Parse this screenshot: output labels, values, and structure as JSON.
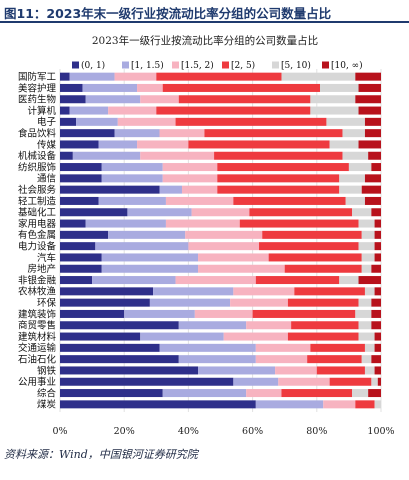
{
  "figure": {
    "title": "图11：2023年末一级行业按流动比率分组的公司数量占比",
    "source": "资料来源：Wind，中国银河证券研究院"
  },
  "chart_data": {
    "type": "bar",
    "orientation": "horizontal",
    "stacked": "percent",
    "title": "2023年一级行业按流动比率分组的公司数量占比",
    "xlabel": "",
    "ylabel": "",
    "xlim": [
      0,
      1
    ],
    "x_ticks": [
      "0%",
      "20%",
      "40%",
      "60%",
      "80%",
      "100%"
    ],
    "legend_position": "top",
    "categories": [
      "国防军工",
      "美容护理",
      "医药生物",
      "计算机",
      "电子",
      "食品饮料",
      "传媒",
      "机械设备",
      "纺织服饰",
      "通信",
      "社会服务",
      "轻工制造",
      "基础化工",
      "家用电器",
      "有色金属",
      "电力设备",
      "汽车",
      "房地产",
      "非银金融",
      "农林牧渔",
      "环保",
      "建筑装饰",
      "商贸零售",
      "建筑材料",
      "交通运输",
      "石油石化",
      "钢铁",
      "公用事业",
      "综合",
      "煤炭"
    ],
    "series": [
      {
        "name": "(0, 1)",
        "color": "#2e2f8a",
        "values": [
          0.03,
          0.07,
          0.08,
          0.03,
          0.05,
          0.17,
          0.12,
          0.04,
          0.13,
          0.13,
          0.31,
          0.12,
          0.21,
          0.08,
          0.15,
          0.11,
          0.13,
          0.13,
          0.1,
          0.29,
          0.28,
          0.2,
          0.37,
          0.25,
          0.31,
          0.37,
          0.43,
          0.54,
          0.32,
          0.61
        ]
      },
      {
        "name": "[1, 1.5)",
        "color": "#a9abe0",
        "values": [
          0.14,
          0.17,
          0.17,
          0.12,
          0.13,
          0.14,
          0.12,
          0.21,
          0.19,
          0.19,
          0.07,
          0.21,
          0.2,
          0.25,
          0.24,
          0.29,
          0.3,
          0.3,
          0.26,
          0.25,
          0.25,
          0.22,
          0.21,
          0.26,
          0.3,
          0.24,
          0.24,
          0.14,
          0.26,
          0.21
        ]
      },
      {
        "name": "[1.5, 2)",
        "color": "#f7b3c0",
        "values": [
          0.13,
          0.08,
          0.12,
          0.15,
          0.18,
          0.14,
          0.16,
          0.23,
          0.17,
          0.17,
          0.11,
          0.21,
          0.18,
          0.23,
          0.24,
          0.22,
          0.22,
          0.27,
          0.25,
          0.19,
          0.18,
          0.18,
          0.14,
          0.2,
          0.17,
          0.16,
          0.13,
          0.16,
          0.11,
          0.1
        ]
      },
      {
        "name": "[2, 5)",
        "color": "#ee3a3f",
        "values": [
          0.39,
          0.49,
          0.41,
          0.48,
          0.47,
          0.43,
          0.44,
          0.4,
          0.41,
          0.38,
          0.38,
          0.35,
          0.32,
          0.37,
          0.31,
          0.31,
          0.29,
          0.24,
          0.26,
          0.22,
          0.22,
          0.32,
          0.21,
          0.22,
          0.17,
          0.17,
          0.15,
          0.13,
          0.22,
          0.06
        ]
      },
      {
        "name": "[5, 10)",
        "color": "#d7d7d7",
        "values": [
          0.23,
          0.12,
          0.14,
          0.15,
          0.12,
          0.07,
          0.09,
          0.08,
          0.07,
          0.08,
          0.07,
          0.06,
          0.06,
          0.05,
          0.04,
          0.05,
          0.04,
          0.03,
          0.06,
          0.03,
          0.04,
          0.05,
          0.04,
          0.05,
          0.03,
          0.03,
          0.03,
          0.02,
          0.05,
          0.02
        ]
      },
      {
        "name": "[10, ∞)",
        "color": "#b8121c",
        "values": [
          0.08,
          0.07,
          0.08,
          0.07,
          0.05,
          0.05,
          0.07,
          0.04,
          0.03,
          0.05,
          0.06,
          0.05,
          0.03,
          0.02,
          0.02,
          0.02,
          0.02,
          0.03,
          0.07,
          0.02,
          0.03,
          0.03,
          0.03,
          0.02,
          0.02,
          0.03,
          0.02,
          0.01,
          0.04,
          0.0
        ]
      }
    ]
  }
}
